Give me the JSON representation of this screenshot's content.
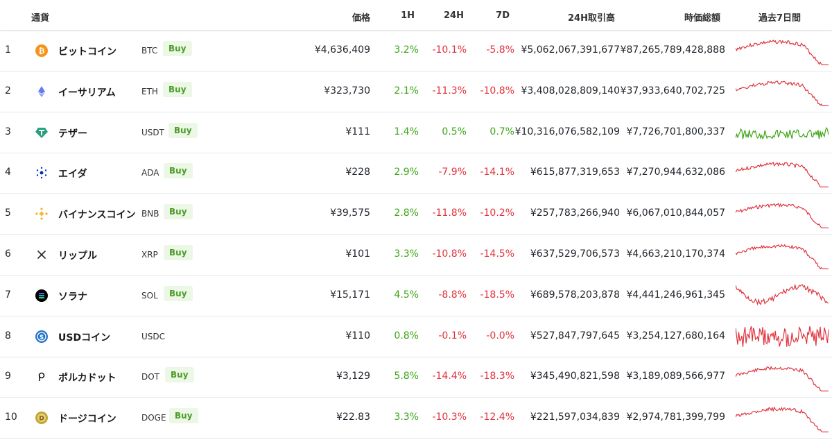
{
  "header": {
    "currency": "通貨",
    "price": "価格",
    "h1": "1H",
    "h24": "24H",
    "d7": "7D",
    "volume": "24H取引高",
    "market_cap": "時価総額",
    "last7": "過去7日間"
  },
  "colors": {
    "positive": "#3ca514",
    "negative": "#e0323c",
    "buy_bg": "#ecf7e6",
    "buy_text": "#4a9d2a"
  },
  "rows": [
    {
      "rank": "1",
      "name": "ビットコイン",
      "ticker": "BTC",
      "buy": "Buy",
      "icon": "bitcoin-icon",
      "price": "¥4,636,409",
      "h1": "3.2%",
      "h24": "-10.1%",
      "d7": "-5.8%",
      "volume": "¥5,062,067,391,677",
      "market_cap": "¥87,265,789,428,888",
      "trend": "down"
    },
    {
      "rank": "2",
      "name": "イーサリアム",
      "ticker": "ETH",
      "buy": "Buy",
      "icon": "ethereum-icon",
      "price": "¥323,730",
      "h1": "2.1%",
      "h24": "-11.3%",
      "d7": "-10.8%",
      "volume": "¥3,408,028,809,140",
      "market_cap": "¥37,933,640,702,725",
      "trend": "down"
    },
    {
      "rank": "3",
      "name": "テザー",
      "ticker": "USDT",
      "buy": "Buy",
      "icon": "tether-icon",
      "price": "¥111",
      "h1": "1.4%",
      "h24": "0.5%",
      "d7": "0.7%",
      "volume": "¥10,316,076,582,109",
      "market_cap": "¥7,726,701,800,337",
      "trend": "flat-up"
    },
    {
      "rank": "4",
      "name": "エイダ",
      "ticker": "ADA",
      "buy": "Buy",
      "icon": "cardano-icon",
      "price": "¥228",
      "h1": "2.9%",
      "h24": "-7.9%",
      "d7": "-14.1%",
      "volume": "¥615,877,319,653",
      "market_cap": "¥7,270,944,632,086",
      "trend": "down"
    },
    {
      "rank": "5",
      "name": "バイナンスコイン",
      "ticker": "BNB",
      "buy": "Buy",
      "icon": "binance-icon",
      "price": "¥39,575",
      "h1": "2.8%",
      "h24": "-11.8%",
      "d7": "-10.2%",
      "volume": "¥257,783,266,940",
      "market_cap": "¥6,067,010,844,057",
      "trend": "down"
    },
    {
      "rank": "6",
      "name": "リップル",
      "ticker": "XRP",
      "buy": "Buy",
      "icon": "xrp-icon",
      "price": "¥101",
      "h1": "3.3%",
      "h24": "-10.8%",
      "d7": "-14.5%",
      "volume": "¥637,529,706,573",
      "market_cap": "¥4,663,210,170,374",
      "trend": "down"
    },
    {
      "rank": "7",
      "name": "ソラナ",
      "ticker": "SOL",
      "buy": "Buy",
      "icon": "solana-icon",
      "price": "¥15,171",
      "h1": "4.5%",
      "h24": "-8.8%",
      "d7": "-18.5%",
      "volume": "¥689,578,203,878",
      "market_cap": "¥4,441,246,961,345",
      "trend": "down-volatile"
    },
    {
      "rank": "8",
      "name": "USDコイン",
      "ticker": "USDC",
      "buy": "",
      "icon": "usdc-icon",
      "price": "¥110",
      "h1": "0.8%",
      "h24": "-0.1%",
      "d7": "-0.0%",
      "volume": "¥527,847,797,645",
      "market_cap": "¥3,254,127,680,164",
      "trend": "flat-down"
    },
    {
      "rank": "9",
      "name": "ポルカドット",
      "ticker": "DOT",
      "buy": "Buy",
      "icon": "polkadot-icon",
      "price": "¥3,129",
      "h1": "5.8%",
      "h24": "-14.4%",
      "d7": "-18.3%",
      "volume": "¥345,490,821,598",
      "market_cap": "¥3,189,089,566,977",
      "trend": "down"
    },
    {
      "rank": "10",
      "name": "ドージコイン",
      "ticker": "DOGE",
      "buy": "Buy",
      "icon": "dogecoin-icon",
      "price": "¥22.83",
      "h1": "3.3%",
      "h24": "-10.3%",
      "d7": "-12.4%",
      "volume": "¥221,597,034,839",
      "market_cap": "¥2,974,781,399,799",
      "trend": "down"
    }
  ]
}
